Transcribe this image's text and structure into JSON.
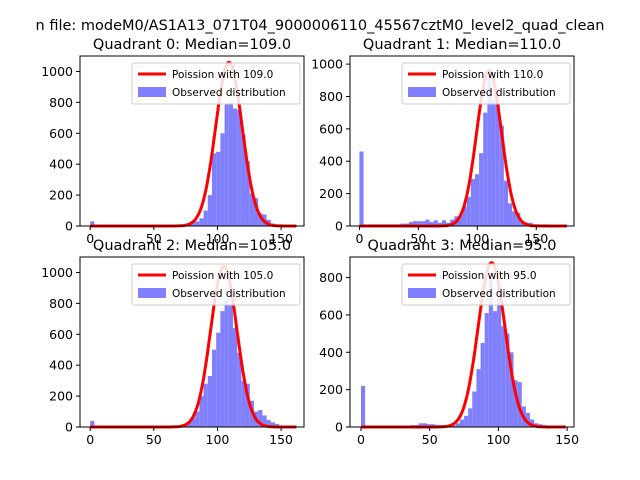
{
  "suptitle": "n file: modeM0/AS1A13_071T04_9000006110_45567cztM0_level2_quad_clean",
  "colors": {
    "fit": "#ff0000",
    "hist": "#8080ff",
    "axes": "#000000"
  },
  "chart_data": [
    {
      "type": "bar",
      "title": "Quadrant 0: Median=109.0",
      "xlim": [
        -8,
        168
      ],
      "ylim": [
        0,
        1100
      ],
      "xticks": [
        0,
        50,
        100,
        150
      ],
      "yticks": [
        0,
        200,
        400,
        600,
        800,
        1000
      ],
      "legend_placement": "top-right",
      "series": [
        {
          "name": "Poission with 109.0",
          "kind": "line",
          "center": 109.0,
          "peak": 1060,
          "width": 10.4
        },
        {
          "name": "Observed distribution",
          "kind": "histogram",
          "bin_width": 3.3,
          "bins": [
            [
              0,
              30
            ],
            [
              3.3,
              5
            ],
            [
              6.6,
              5
            ],
            [
              9.9,
              5
            ],
            [
              13.2,
              5
            ],
            [
              16.5,
              5
            ],
            [
              19.8,
              5
            ],
            [
              23.1,
              5
            ],
            [
              26.4,
              5
            ],
            [
              29.7,
              5
            ],
            [
              33,
              5
            ],
            [
              36.3,
              5
            ],
            [
              39.6,
              5
            ],
            [
              42.9,
              5
            ],
            [
              46.2,
              5
            ],
            [
              49.5,
              5
            ],
            [
              52.8,
              5
            ],
            [
              56.1,
              5
            ],
            [
              59.4,
              5
            ],
            [
              62.7,
              5
            ],
            [
              66,
              8
            ],
            [
              69.3,
              10
            ],
            [
              72.6,
              10
            ],
            [
              75.9,
              15
            ],
            [
              79.2,
              30
            ],
            [
              82.5,
              30
            ],
            [
              85.8,
              50
            ],
            [
              89.1,
              100
            ],
            [
              92.4,
              200
            ],
            [
              95.7,
              470
            ],
            [
              99,
              480
            ],
            [
              102.3,
              600
            ],
            [
              105.6,
              790
            ],
            [
              108.9,
              800
            ],
            [
              112.2,
              760
            ],
            [
              115.5,
              750
            ],
            [
              118.8,
              590
            ],
            [
              122.1,
              420
            ],
            [
              125.4,
              210
            ],
            [
              128.7,
              180
            ],
            [
              132,
              80
            ],
            [
              135.3,
              75
            ],
            [
              138.6,
              40
            ],
            [
              141.9,
              15
            ],
            [
              145.2,
              10
            ],
            [
              148.5,
              10
            ],
            [
              151.8,
              5
            ],
            [
              155.1,
              5
            ],
            [
              158.4,
              5
            ]
          ]
        }
      ]
    },
    {
      "type": "bar",
      "title": "Quadrant 1: Median=110.0",
      "xlim": [
        -8,
        182
      ],
      "ylim": [
        0,
        1050
      ],
      "xticks": [
        0,
        50,
        100,
        150
      ],
      "yticks": [
        0,
        200,
        400,
        600,
        800,
        1000
      ],
      "legend_placement": "top-right",
      "series": [
        {
          "name": "Poission with 110.0",
          "kind": "line",
          "center": 110.0,
          "peak": 960,
          "width": 10.5
        },
        {
          "name": "Observed distribution",
          "kind": "histogram",
          "bin_width": 3.5,
          "bins": [
            [
              0,
              460
            ],
            [
              3.5,
              10
            ],
            [
              7,
              10
            ],
            [
              10.5,
              10
            ],
            [
              14,
              10
            ],
            [
              17.5,
              10
            ],
            [
              21,
              10
            ],
            [
              24.5,
              10
            ],
            [
              28,
              10
            ],
            [
              31.5,
              10
            ],
            [
              35,
              15
            ],
            [
              38.5,
              15
            ],
            [
              42,
              25
            ],
            [
              45.5,
              30
            ],
            [
              49,
              30
            ],
            [
              52.5,
              30
            ],
            [
              56,
              40
            ],
            [
              59.5,
              25
            ],
            [
              63,
              35
            ],
            [
              66.5,
              20
            ],
            [
              70,
              35
            ],
            [
              73.5,
              20
            ],
            [
              77,
              40
            ],
            [
              80.5,
              60
            ],
            [
              84,
              65
            ],
            [
              87.5,
              120
            ],
            [
              91,
              180
            ],
            [
              94.5,
              290
            ],
            [
              98,
              320
            ],
            [
              101.5,
              450
            ],
            [
              105,
              700
            ],
            [
              108.5,
              920
            ],
            [
              112,
              780
            ],
            [
              115.5,
              760
            ],
            [
              119,
              620
            ],
            [
              122.5,
              280
            ],
            [
              126,
              140
            ],
            [
              129.5,
              90
            ],
            [
              133,
              80
            ],
            [
              136.5,
              20
            ],
            [
              140,
              20
            ],
            [
              143.5,
              20
            ],
            [
              147,
              10
            ],
            [
              150.5,
              10
            ],
            [
              154,
              10
            ],
            [
              157.5,
              10
            ],
            [
              161,
              5
            ],
            [
              164.5,
              5
            ],
            [
              168,
              5
            ],
            [
              171.5,
              5
            ]
          ]
        }
      ]
    },
    {
      "type": "bar",
      "title": "Quadrant 2: Median=105.0",
      "xlim": [
        -8,
        168
      ],
      "ylim": [
        0,
        1100
      ],
      "xticks": [
        0,
        50,
        100,
        150
      ],
      "yticks": [
        0,
        200,
        400,
        600,
        800,
        1000
      ],
      "legend_placement": "top-right",
      "series": [
        {
          "name": "Poission with 105.0",
          "kind": "line",
          "center": 105.0,
          "peak": 1040,
          "width": 10.3
        },
        {
          "name": "Observed distribution",
          "kind": "histogram",
          "bin_width": 3.3,
          "bins": [
            [
              0,
              40
            ],
            [
              3.3,
              5
            ],
            [
              6.6,
              5
            ],
            [
              9.9,
              5
            ],
            [
              13.2,
              5
            ],
            [
              16.5,
              5
            ],
            [
              19.8,
              5
            ],
            [
              23.1,
              5
            ],
            [
              26.4,
              5
            ],
            [
              29.7,
              5
            ],
            [
              33,
              5
            ],
            [
              36.3,
              5
            ],
            [
              39.6,
              5
            ],
            [
              42.9,
              5
            ],
            [
              46.2,
              5
            ],
            [
              49.5,
              5
            ],
            [
              52.8,
              5
            ],
            [
              56.1,
              5
            ],
            [
              59.4,
              5
            ],
            [
              62.7,
              5
            ],
            [
              66,
              5
            ],
            [
              69.3,
              10
            ],
            [
              72.6,
              20
            ],
            [
              75.9,
              30
            ],
            [
              79.2,
              60
            ],
            [
              82.5,
              100
            ],
            [
              85.8,
              200
            ],
            [
              89.1,
              280
            ],
            [
              92.4,
              330
            ],
            [
              95.7,
              500
            ],
            [
              99,
              610
            ],
            [
              102.3,
              750
            ],
            [
              105.6,
              830
            ],
            [
              108.9,
              790
            ],
            [
              112.2,
              640
            ],
            [
              115.5,
              480
            ],
            [
              118.8,
              300
            ],
            [
              122.1,
              280
            ],
            [
              125.4,
              170
            ],
            [
              128.7,
              100
            ],
            [
              132,
              110
            ],
            [
              135.3,
              75
            ],
            [
              138.6,
              45
            ],
            [
              141.9,
              30
            ],
            [
              145.2,
              20
            ],
            [
              148.5,
              10
            ],
            [
              151.8,
              5
            ],
            [
              155.1,
              5
            ],
            [
              158.4,
              5
            ]
          ]
        }
      ]
    },
    {
      "type": "bar",
      "title": "Quadrant 3: Median=95.0",
      "xlim": [
        -8,
        155
      ],
      "ylim": [
        0,
        910
      ],
      "xticks": [
        0,
        50,
        100,
        150
      ],
      "yticks": [
        0,
        200,
        400,
        600,
        800
      ],
      "legend_placement": "top-right",
      "series": [
        {
          "name": "Poission with 95.0",
          "kind": "line",
          "center": 95.0,
          "peak": 880,
          "width": 9.8
        },
        {
          "name": "Observed distribution",
          "kind": "histogram",
          "bin_width": 3.0,
          "bins": [
            [
              0,
              220
            ],
            [
              3,
              5
            ],
            [
              6,
              5
            ],
            [
              9,
              5
            ],
            [
              12,
              5
            ],
            [
              15,
              5
            ],
            [
              18,
              5
            ],
            [
              21,
              5
            ],
            [
              24,
              5
            ],
            [
              27,
              5
            ],
            [
              30,
              5
            ],
            [
              33,
              5
            ],
            [
              36,
              10
            ],
            [
              39,
              10
            ],
            [
              42,
              20
            ],
            [
              45,
              20
            ],
            [
              48,
              15
            ],
            [
              51,
              15
            ],
            [
              54,
              10
            ],
            [
              57,
              10
            ],
            [
              60,
              10
            ],
            [
              63,
              5
            ],
            [
              66,
              10
            ],
            [
              69,
              20
            ],
            [
              72,
              40
            ],
            [
              75,
              60
            ],
            [
              78,
              100
            ],
            [
              81,
              190
            ],
            [
              84,
              310
            ],
            [
              87,
              450
            ],
            [
              90,
              610
            ],
            [
              93,
              790
            ],
            [
              96,
              620
            ],
            [
              99,
              690
            ],
            [
              102,
              540
            ],
            [
              105,
              500
            ],
            [
              108,
              400
            ],
            [
              111,
              250
            ],
            [
              114,
              240
            ],
            [
              117,
              110
            ],
            [
              120,
              75
            ],
            [
              123,
              40
            ],
            [
              126,
              20
            ],
            [
              129,
              15
            ],
            [
              132,
              10
            ],
            [
              135,
              5
            ],
            [
              138,
              5
            ],
            [
              141,
              5
            ]
          ]
        }
      ]
    }
  ]
}
